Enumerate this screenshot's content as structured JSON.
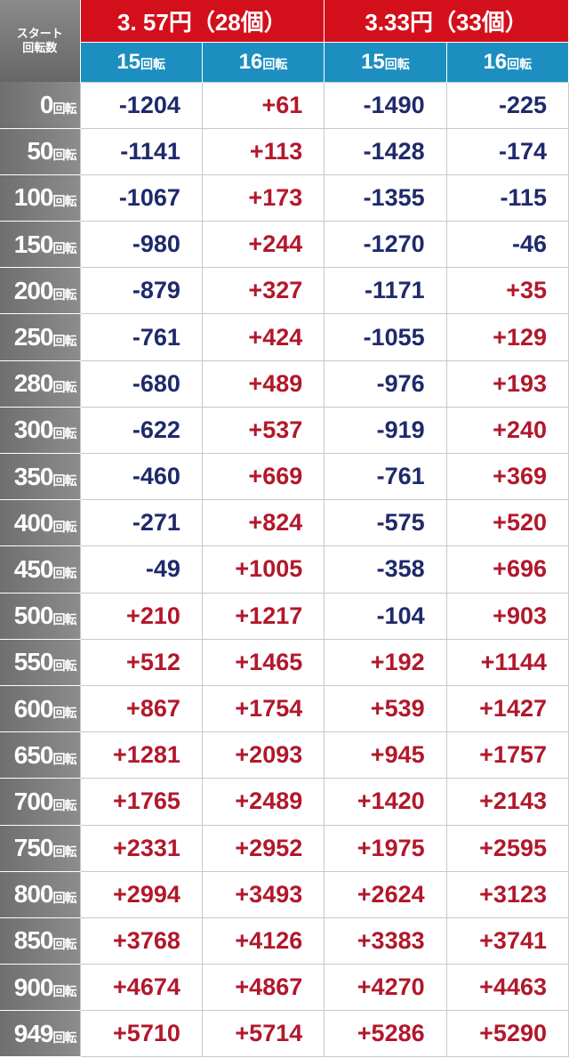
{
  "table": {
    "corner": [
      "スタート",
      "回転数"
    ],
    "groups": [
      "3. 57円（28個）",
      "3.33円（33個）"
    ],
    "subheaders": [
      {
        "num": "15",
        "unit": "回転"
      },
      {
        "num": "16",
        "unit": "回転"
      },
      {
        "num": "15",
        "unit": "回転"
      },
      {
        "num": "16",
        "unit": "回転"
      }
    ],
    "rows": [
      {
        "num": "0",
        "unit": "回転",
        "cells": [
          "-1204",
          "+61",
          "-1490",
          "-225"
        ]
      },
      {
        "num": "50",
        "unit": "回転",
        "cells": [
          "-1141",
          "+113",
          "-1428",
          "-174"
        ]
      },
      {
        "num": "100",
        "unit": "回転",
        "cells": [
          "-1067",
          "+173",
          "-1355",
          "-115"
        ]
      },
      {
        "num": "150",
        "unit": "回転",
        "cells": [
          "-980",
          "+244",
          "-1270",
          "-46"
        ]
      },
      {
        "num": "200",
        "unit": "回転",
        "cells": [
          "-879",
          "+327",
          "-1171",
          "+35"
        ]
      },
      {
        "num": "250",
        "unit": "回転",
        "cells": [
          "-761",
          "+424",
          "-1055",
          "+129"
        ]
      },
      {
        "num": "280",
        "unit": "回転",
        "cells": [
          "-680",
          "+489",
          "-976",
          "+193"
        ]
      },
      {
        "num": "300",
        "unit": "回転",
        "cells": [
          "-622",
          "+537",
          "-919",
          "+240"
        ]
      },
      {
        "num": "350",
        "unit": "回転",
        "cells": [
          "-460",
          "+669",
          "-761",
          "+369"
        ]
      },
      {
        "num": "400",
        "unit": "回転",
        "cells": [
          "-271",
          "+824",
          "-575",
          "+520"
        ]
      },
      {
        "num": "450",
        "unit": "回転",
        "cells": [
          "-49",
          "+1005",
          "-358",
          "+696"
        ]
      },
      {
        "num": "500",
        "unit": "回転",
        "cells": [
          "+210",
          "+1217",
          "-104",
          "+903"
        ]
      },
      {
        "num": "550",
        "unit": "回転",
        "cells": [
          "+512",
          "+1465",
          "+192",
          "+1144"
        ]
      },
      {
        "num": "600",
        "unit": "回転",
        "cells": [
          "+867",
          "+1754",
          "+539",
          "+1427"
        ]
      },
      {
        "num": "650",
        "unit": "回転",
        "cells": [
          "+1281",
          "+2093",
          "+945",
          "+1757"
        ]
      },
      {
        "num": "700",
        "unit": "回転",
        "cells": [
          "+1765",
          "+2489",
          "+1420",
          "+2143"
        ]
      },
      {
        "num": "750",
        "unit": "回転",
        "cells": [
          "+2331",
          "+2952",
          "+1975",
          "+2595"
        ]
      },
      {
        "num": "800",
        "unit": "回転",
        "cells": [
          "+2994",
          "+3493",
          "+2624",
          "+3123"
        ]
      },
      {
        "num": "850",
        "unit": "回転",
        "cells": [
          "+3768",
          "+4126",
          "+3383",
          "+3741"
        ]
      },
      {
        "num": "900",
        "unit": "回転",
        "cells": [
          "+4674",
          "+4867",
          "+4270",
          "+4463"
        ]
      },
      {
        "num": "949",
        "unit": "回転",
        "cells": [
          "+5710",
          "+5714",
          "+5286",
          "+5290"
        ]
      }
    ]
  }
}
